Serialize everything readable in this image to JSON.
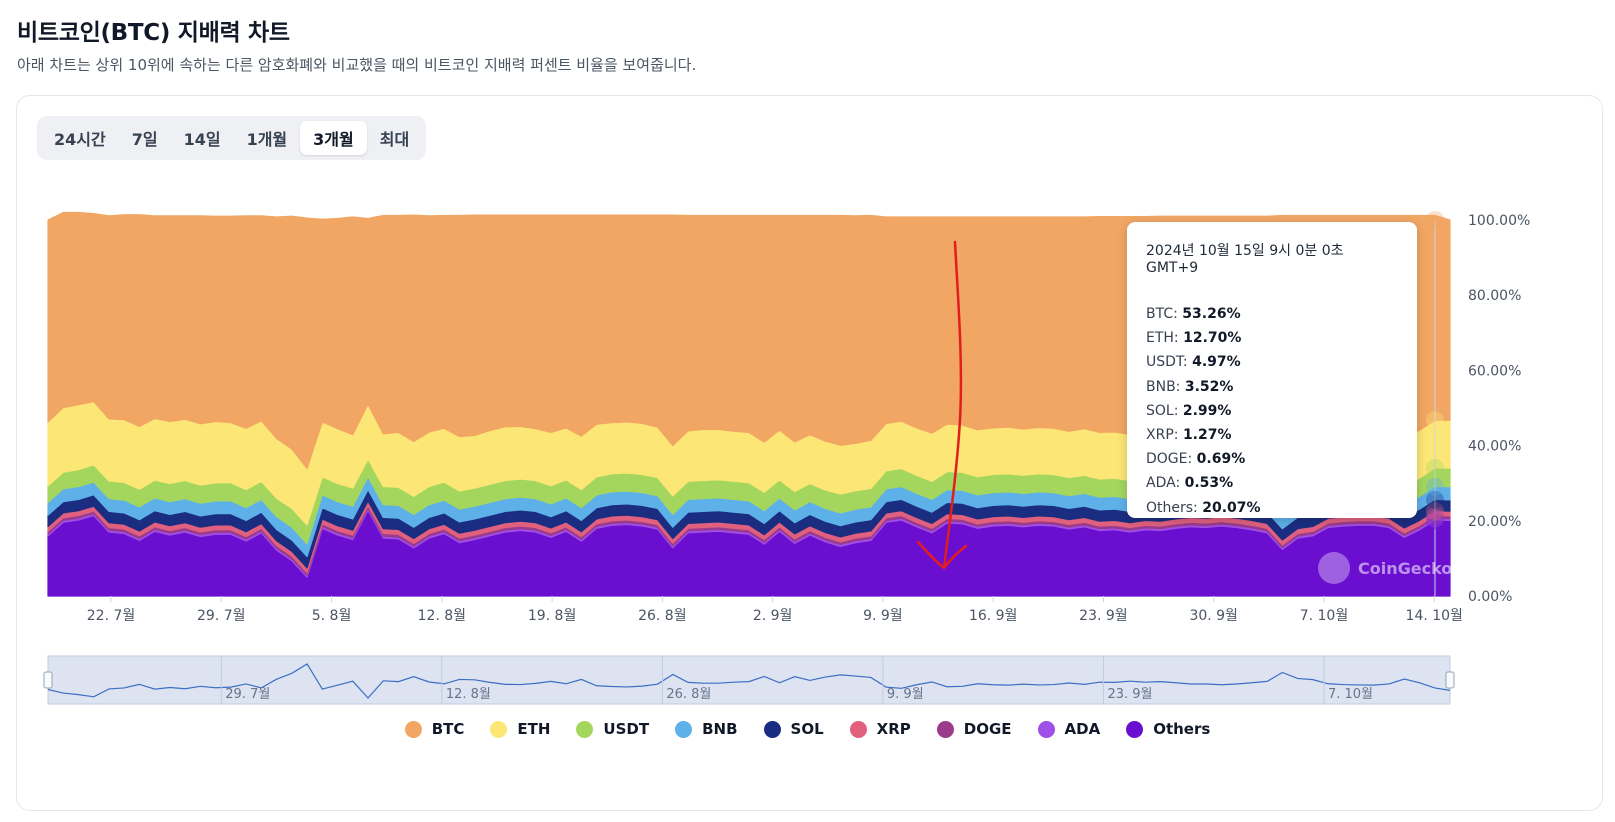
{
  "header": {
    "title": "비트코인(BTC) 지배력 차트",
    "subtitle": "아래 차트는 상위 10위에 속하는 다른 암호화폐와 비교했을 때의 비트코인 지배력 퍼센트 비율을 보여줍니다."
  },
  "range_tabs": [
    "24시간",
    "7일",
    "14일",
    "1개월",
    "3개월",
    "최대"
  ],
  "active_range": "3개월",
  "tooltip": {
    "date": "2024년 10월 15일 9시 0분 0초 GMT+9",
    "rows": [
      {
        "name": "BTC",
        "value": "53.26%"
      },
      {
        "name": "ETH",
        "value": "12.70%"
      },
      {
        "name": "USDT",
        "value": "4.97%"
      },
      {
        "name": "BNB",
        "value": "3.52%"
      },
      {
        "name": "SOL",
        "value": "2.99%"
      },
      {
        "name": "XRP",
        "value": "1.27%"
      },
      {
        "name": "DOGE",
        "value": "0.69%"
      },
      {
        "name": "ADA",
        "value": "0.53%"
      },
      {
        "name": "Others",
        "value": "20.07%"
      }
    ]
  },
  "watermark": "CoinGecko",
  "chart_data": {
    "type": "area",
    "stacked": true,
    "x_start": "2024-07-18",
    "x_end": "2024-10-15",
    "x_tick_labels": [
      "22. 7월",
      "29. 7월",
      "5. 8월",
      "12. 8월",
      "19. 8월",
      "26. 8월",
      "2. 9월",
      "9. 9월",
      "16. 9월",
      "23. 9월",
      "30. 9월",
      "7. 10월",
      "14. 10월"
    ],
    "y_tick_labels": [
      "0.00%",
      "20.00%",
      "40.00%",
      "60.00%",
      "80.00%",
      "100.00%"
    ],
    "ylim": [
      0,
      100
    ],
    "navigator_tick_labels": [
      "29. 7월",
      "12. 8월",
      "26. 8월",
      "9. 9월",
      "23. 9월",
      "7. 10월"
    ],
    "x_tick_dates": [
      "2024-07-22",
      "2024-07-29",
      "2024-08-05",
      "2024-08-12",
      "2024-08-19",
      "2024-08-26",
      "2024-09-02",
      "2024-09-09",
      "2024-09-16",
      "2024-09-23",
      "2024-09-30",
      "2024-10-07",
      "2024-10-14"
    ],
    "series_colors": {
      "BTC": "#f2a664",
      "ETH": "#fce675",
      "USDT": "#a4d65e",
      "BNB": "#5eb0e8",
      "SOL": "#1b2d80",
      "XRP": "#e0607e",
      "DOGE": "#9b3b8c",
      "ADA": "#a04fe8",
      "Others": "#6a0fd0"
    },
    "series": [
      {
        "name": "Others",
        "values": [
          16.0,
          19.6,
          20.2,
          21.4,
          17.0,
          16.6,
          14.8,
          17.2,
          16.2,
          17.0,
          15.8,
          16.4,
          16.4,
          14.6,
          16.8,
          12.2,
          9.4,
          5.0,
          18.0,
          16.2,
          15.0,
          22.8,
          15.4,
          15.2,
          12.8,
          15.4,
          16.6,
          14.2,
          15.0,
          16.0,
          17.0,
          17.4,
          17.0,
          15.6,
          17.2,
          14.6,
          18.0,
          18.8,
          19.0,
          18.6,
          17.8,
          12.8,
          16.8,
          17.0,
          17.2,
          16.8,
          16.4,
          13.8,
          17.2,
          14.0,
          16.2,
          14.4,
          13.2,
          14.2,
          14.8,
          19.6,
          20.2,
          18.4,
          16.8,
          19.4,
          19.2,
          18.0,
          18.6,
          18.8,
          18.4,
          18.8,
          18.6,
          17.8,
          18.4,
          17.4,
          17.6,
          17.0,
          17.6,
          17.4,
          18.0,
          18.4,
          18.2,
          18.6,
          18.2,
          17.6,
          16.8,
          12.4,
          15.4,
          16.0,
          18.2,
          18.6,
          18.8,
          18.8,
          18.2,
          15.6,
          17.6,
          20.2,
          20.07
        ]
      },
      {
        "name": "ADA",
        "values": [
          0.5,
          0.5,
          0.5,
          0.5,
          0.5,
          0.5,
          0.5,
          0.5,
          0.5,
          0.5,
          0.5,
          0.5,
          0.5,
          0.5,
          0.5,
          0.5,
          0.5,
          0.5,
          0.5,
          0.5,
          0.5,
          0.5,
          0.5,
          0.5,
          0.5,
          0.5,
          0.5,
          0.5,
          0.5,
          0.5,
          0.5,
          0.5,
          0.5,
          0.5,
          0.5,
          0.5,
          0.5,
          0.5,
          0.5,
          0.5,
          0.5,
          0.5,
          0.5,
          0.5,
          0.5,
          0.5,
          0.5,
          0.5,
          0.5,
          0.5,
          0.5,
          0.5,
          0.5,
          0.5,
          0.5,
          0.5,
          0.5,
          0.5,
          0.5,
          0.5,
          0.5,
          0.5,
          0.5,
          0.5,
          0.5,
          0.5,
          0.5,
          0.5,
          0.5,
          0.5,
          0.5,
          0.5,
          0.5,
          0.5,
          0.5,
          0.5,
          0.5,
          0.5,
          0.5,
          0.5,
          0.5,
          0.5,
          0.5,
          0.5,
          0.5,
          0.5,
          0.5,
          0.5,
          0.5,
          0.5,
          0.5,
          0.5,
          0.53
        ]
      },
      {
        "name": "DOGE",
        "values": [
          0.7,
          0.7,
          0.7,
          0.7,
          0.7,
          0.7,
          0.7,
          0.7,
          0.7,
          0.7,
          0.7,
          0.7,
          0.7,
          0.7,
          0.7,
          0.7,
          0.7,
          0.7,
          0.7,
          0.7,
          0.7,
          0.7,
          0.7,
          0.7,
          0.7,
          0.7,
          0.7,
          0.7,
          0.7,
          0.7,
          0.7,
          0.7,
          0.7,
          0.7,
          0.7,
          0.7,
          0.7,
          0.7,
          0.7,
          0.7,
          0.7,
          0.7,
          0.7,
          0.7,
          0.7,
          0.7,
          0.7,
          0.7,
          0.7,
          0.7,
          0.7,
          0.7,
          0.7,
          0.7,
          0.7,
          0.7,
          0.7,
          0.7,
          0.7,
          0.7,
          0.7,
          0.7,
          0.7,
          0.7,
          0.7,
          0.7,
          0.7,
          0.7,
          0.7,
          0.7,
          0.7,
          0.7,
          0.7,
          0.7,
          0.7,
          0.7,
          0.7,
          0.7,
          0.7,
          0.7,
          0.7,
          0.7,
          0.7,
          0.7,
          0.7,
          0.7,
          0.7,
          0.7,
          0.7,
          0.7,
          0.7,
          0.7,
          0.69
        ]
      },
      {
        "name": "XRP",
        "values": [
          1.3,
          1.3,
          1.3,
          1.3,
          1.3,
          1.3,
          1.3,
          1.3,
          1.3,
          1.3,
          1.3,
          1.3,
          1.3,
          1.3,
          1.3,
          1.3,
          1.3,
          1.3,
          1.3,
          1.3,
          1.3,
          1.3,
          1.3,
          1.3,
          1.3,
          1.3,
          1.3,
          1.3,
          1.3,
          1.3,
          1.3,
          1.3,
          1.3,
          1.3,
          1.3,
          1.3,
          1.3,
          1.3,
          1.3,
          1.3,
          1.3,
          1.3,
          1.3,
          1.3,
          1.3,
          1.3,
          1.3,
          1.3,
          1.3,
          1.3,
          1.3,
          1.3,
          1.3,
          1.3,
          1.3,
          1.3,
          1.3,
          1.3,
          1.3,
          1.3,
          1.3,
          1.3,
          1.3,
          1.3,
          1.3,
          1.3,
          1.3,
          1.3,
          1.3,
          1.3,
          1.3,
          1.3,
          1.3,
          1.3,
          1.3,
          1.3,
          1.3,
          1.3,
          1.3,
          1.3,
          1.3,
          1.3,
          1.3,
          1.3,
          1.3,
          1.3,
          1.3,
          1.3,
          1.3,
          1.3,
          1.3,
          1.3,
          1.27
        ]
      },
      {
        "name": "SOL",
        "values": [
          3.0,
          3.0,
          3.0,
          3.0,
          3.0,
          3.0,
          3.0,
          3.0,
          3.0,
          3.0,
          3.0,
          3.0,
          3.0,
          3.0,
          3.0,
          3.0,
          3.0,
          3.0,
          3.0,
          3.0,
          3.0,
          3.0,
          3.0,
          3.0,
          3.0,
          3.0,
          3.0,
          3.0,
          3.0,
          3.0,
          3.0,
          3.0,
          3.0,
          3.0,
          3.0,
          3.0,
          3.0,
          3.0,
          3.0,
          3.0,
          3.0,
          3.0,
          3.0,
          3.0,
          3.0,
          3.0,
          3.0,
          3.0,
          3.0,
          3.0,
          3.0,
          3.0,
          3.0,
          3.0,
          3.0,
          3.0,
          3.0,
          3.0,
          3.0,
          3.0,
          3.0,
          3.0,
          3.0,
          3.0,
          3.0,
          3.0,
          3.0,
          3.0,
          3.0,
          3.0,
          3.0,
          3.0,
          3.0,
          3.0,
          3.0,
          3.0,
          3.0,
          3.0,
          3.0,
          3.0,
          3.0,
          3.0,
          3.0,
          3.0,
          3.0,
          3.0,
          3.0,
          3.0,
          3.0,
          3.0,
          3.0,
          3.0,
          2.99
        ]
      },
      {
        "name": "BNB",
        "values": [
          3.4,
          3.4,
          3.4,
          3.4,
          3.4,
          3.4,
          3.4,
          3.4,
          3.4,
          3.4,
          3.4,
          3.4,
          3.4,
          3.4,
          3.4,
          3.4,
          3.4,
          3.4,
          3.4,
          3.4,
          3.4,
          3.4,
          3.4,
          3.4,
          3.4,
          3.4,
          3.4,
          3.4,
          3.4,
          3.4,
          3.4,
          3.4,
          3.4,
          3.4,
          3.4,
          3.4,
          3.4,
          3.4,
          3.4,
          3.4,
          3.4,
          3.4,
          3.4,
          3.4,
          3.4,
          3.4,
          3.4,
          3.4,
          3.4,
          3.4,
          3.4,
          3.4,
          3.4,
          3.4,
          3.4,
          3.4,
          3.4,
          3.4,
          3.4,
          3.4,
          3.4,
          3.4,
          3.4,
          3.4,
          3.4,
          3.4,
          3.4,
          3.4,
          3.4,
          3.4,
          3.4,
          3.4,
          3.4,
          3.4,
          3.4,
          3.4,
          3.4,
          3.4,
          3.4,
          3.4,
          3.4,
          3.4,
          3.4,
          3.4,
          3.4,
          3.4,
          3.4,
          3.4,
          3.4,
          3.4,
          3.4,
          3.4,
          3.52
        ]
      },
      {
        "name": "USDT",
        "values": [
          4.4,
          4.4,
          4.5,
          4.6,
          4.7,
          4.7,
          4.7,
          4.7,
          4.8,
          4.8,
          4.8,
          4.8,
          4.8,
          4.8,
          4.8,
          4.9,
          5.0,
          5.0,
          4.8,
          4.8,
          4.8,
          4.7,
          4.8,
          4.8,
          4.8,
          4.8,
          4.8,
          4.8,
          4.8,
          4.8,
          4.8,
          4.8,
          4.8,
          4.8,
          4.8,
          4.8,
          4.8,
          4.8,
          4.8,
          4.8,
          4.8,
          4.9,
          4.8,
          4.8,
          4.8,
          4.8,
          4.8,
          4.9,
          4.8,
          4.9,
          4.8,
          4.9,
          5.0,
          4.9,
          4.9,
          4.8,
          4.8,
          4.8,
          4.8,
          4.8,
          4.8,
          4.8,
          4.8,
          4.8,
          4.8,
          4.8,
          4.8,
          4.8,
          4.8,
          4.8,
          4.8,
          4.8,
          4.8,
          4.8,
          4.8,
          4.8,
          4.8,
          4.8,
          4.8,
          4.8,
          4.9,
          5.0,
          5.0,
          5.0,
          4.9,
          4.9,
          4.9,
          4.9,
          4.9,
          5.0,
          4.9,
          4.9,
          4.97
        ]
      },
      {
        "name": "ETH",
        "values": [
          17.0,
          17.2,
          17.3,
          16.8,
          16.5,
          16.7,
          16.7,
          16.4,
          16.5,
          16.3,
          16.3,
          16.3,
          16.0,
          16.3,
          16.1,
          15.9,
          15.8,
          15.0,
          14.6,
          14.6,
          14.2,
          14.6,
          14.0,
          14.6,
          14.6,
          14.5,
          14.3,
          14.5,
          14.0,
          14.3,
          14.3,
          14.0,
          13.8,
          14.2,
          13.8,
          14.2,
          14.0,
          13.6,
          13.6,
          13.6,
          13.4,
          13.4,
          13.4,
          13.6,
          13.4,
          13.3,
          13.4,
          13.3,
          13.2,
          13.2,
          13.0,
          13.0,
          13.0,
          12.6,
          12.8,
          12.6,
          12.6,
          12.6,
          12.8,
          12.6,
          12.6,
          12.5,
          12.4,
          12.4,
          12.3,
          12.3,
          12.3,
          12.3,
          12.4,
          12.4,
          12.3,
          12.3,
          12.2,
          12.2,
          12.2,
          12.4,
          12.6,
          12.6,
          12.6,
          12.6,
          12.6,
          12.6,
          12.6,
          12.6,
          12.6,
          12.6,
          12.6,
          12.7,
          12.7,
          12.7,
          12.7,
          12.7,
          12.7
        ]
      },
      {
        "name": "BTC",
        "values": [
          53.7,
          51.9,
          51.1,
          50.0,
          54.0,
          54.5,
          56.3,
          53.9,
          54.7,
          54.1,
          55.3,
          54.6,
          54.9,
          56.5,
          54.5,
          58.9,
          61.9,
          66.6,
          53.9,
          55.9,
          57.9,
          49.4,
          58.1,
          57.7,
          60.2,
          57.5,
          56.6,
          58.8,
          58.6,
          57.3,
          56.3,
          56.2,
          56.8,
          57.8,
          56.6,
          58.8,
          55.6,
          55.2,
          55.0,
          55.4,
          56.4,
          61.3,
          57.3,
          56.9,
          56.9,
          57.4,
          57.7,
          60.3,
          57.1,
          60.2,
          58.3,
          60.0,
          61.1,
          60.5,
          59.8,
          54.9,
          54.3,
          56.1,
          57.5,
          55.1,
          55.3,
          56.6,
          56.1,
          55.9,
          56.4,
          56.0,
          56.2,
          57.0,
          56.3,
          57.4,
          57.3,
          57.9,
          57.4,
          57.7,
          57.1,
          56.5,
          56.5,
          56.1,
          56.5,
          57.1,
          57.8,
          62.3,
          59.3,
          58.7,
          56.6,
          56.2,
          56.0,
          55.9,
          56.5,
          59.0,
          57.1,
          54.5,
          53.26
        ]
      }
    ]
  },
  "legend": [
    "BTC",
    "ETH",
    "USDT",
    "BNB",
    "SOL",
    "XRP",
    "DOGE",
    "ADA",
    "Others"
  ]
}
